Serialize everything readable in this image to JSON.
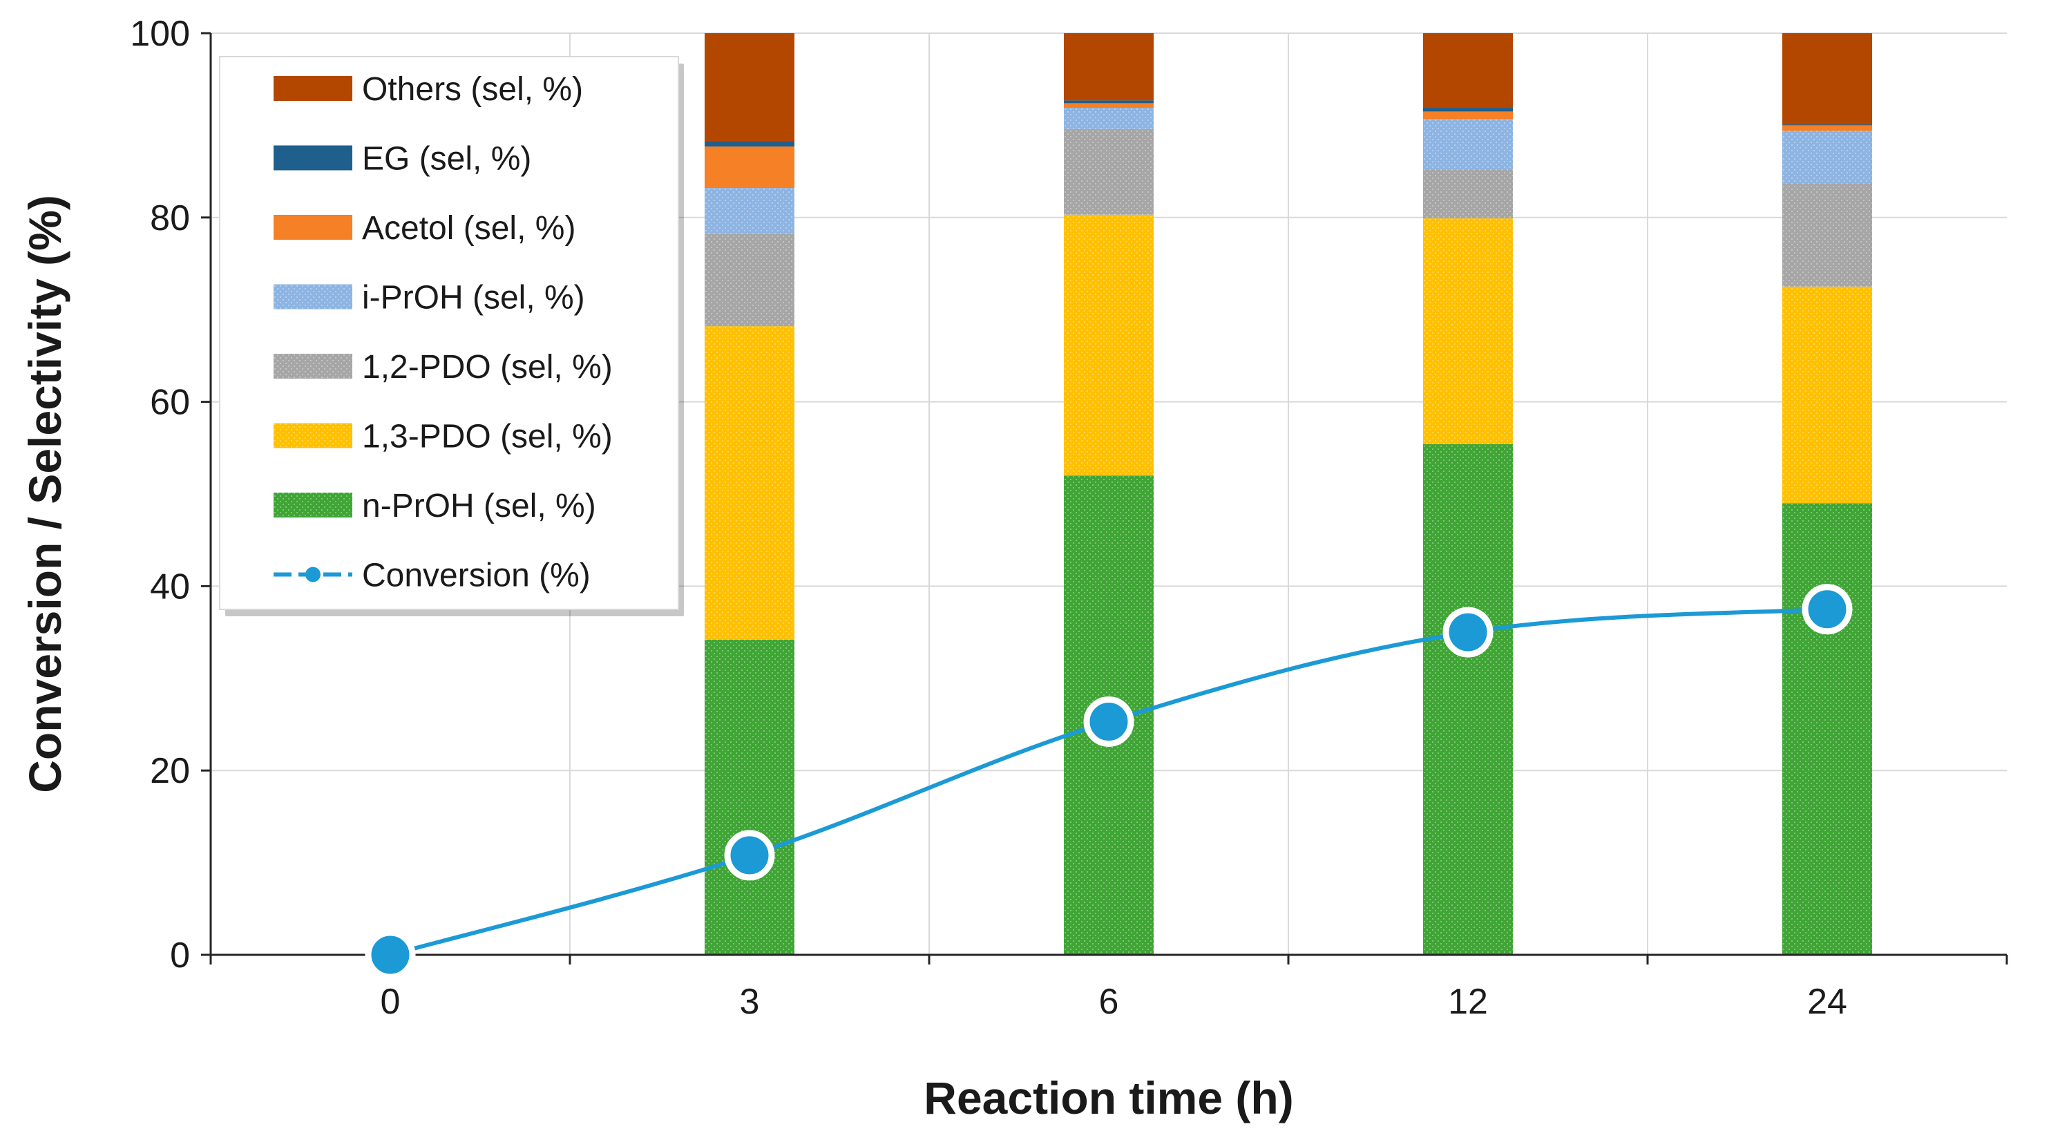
{
  "chart_data": {
    "type": "bar",
    "stacked": true,
    "title": "",
    "xlabel": "Reaction time (h)",
    "ylabel": "Conversion / Selectivity (%)",
    "ylim": [
      0,
      100
    ],
    "y_ticks": [
      0,
      20,
      40,
      60,
      80,
      100
    ],
    "grid": true,
    "legend_position": "top-left",
    "categories": [
      "0",
      "3",
      "6",
      "12",
      "24"
    ],
    "series": [
      {
        "name": "n-PrOH (sel, %)",
        "kind": "bar",
        "color": "#3fa535",
        "pattern": "dots",
        "values": [
          null,
          34.2,
          52.0,
          55.4,
          49.0
        ]
      },
      {
        "name": "1,3-PDO (sel, %)",
        "kind": "bar",
        "color": "#ffc000",
        "pattern": "dots",
        "values": [
          null,
          34.0,
          28.3,
          24.5,
          23.5
        ]
      },
      {
        "name": "1,2-PDO (sel, %)",
        "kind": "bar",
        "color": "#a6a6a6",
        "pattern": "dots",
        "values": [
          null,
          10.0,
          9.3,
          5.3,
          11.2
        ]
      },
      {
        "name": "i-PrOH (sel, %)",
        "kind": "bar",
        "color": "#8db4e2",
        "pattern": "dots",
        "values": [
          null,
          5.0,
          2.3,
          5.5,
          5.7
        ]
      },
      {
        "name": "Acetol (sel, %)",
        "kind": "bar",
        "color": "#f58025",
        "pattern": "none",
        "values": [
          null,
          4.5,
          0.5,
          0.8,
          0.6
        ]
      },
      {
        "name": "EG (sel, %)",
        "kind": "bar",
        "color": "#1f5f8b",
        "pattern": "none",
        "values": [
          null,
          0.6,
          0.3,
          0.4,
          0.1
        ]
      },
      {
        "name": "Others (sel, %)",
        "kind": "bar",
        "color": "#b34700",
        "pattern": "none",
        "values": [
          null,
          11.7,
          7.3,
          8.1,
          9.9
        ]
      },
      {
        "name": "Conversion (%)",
        "kind": "line",
        "color": "#1b9ad6",
        "values": [
          0,
          10.8,
          25.3,
          35.0,
          37.5
        ]
      }
    ]
  }
}
